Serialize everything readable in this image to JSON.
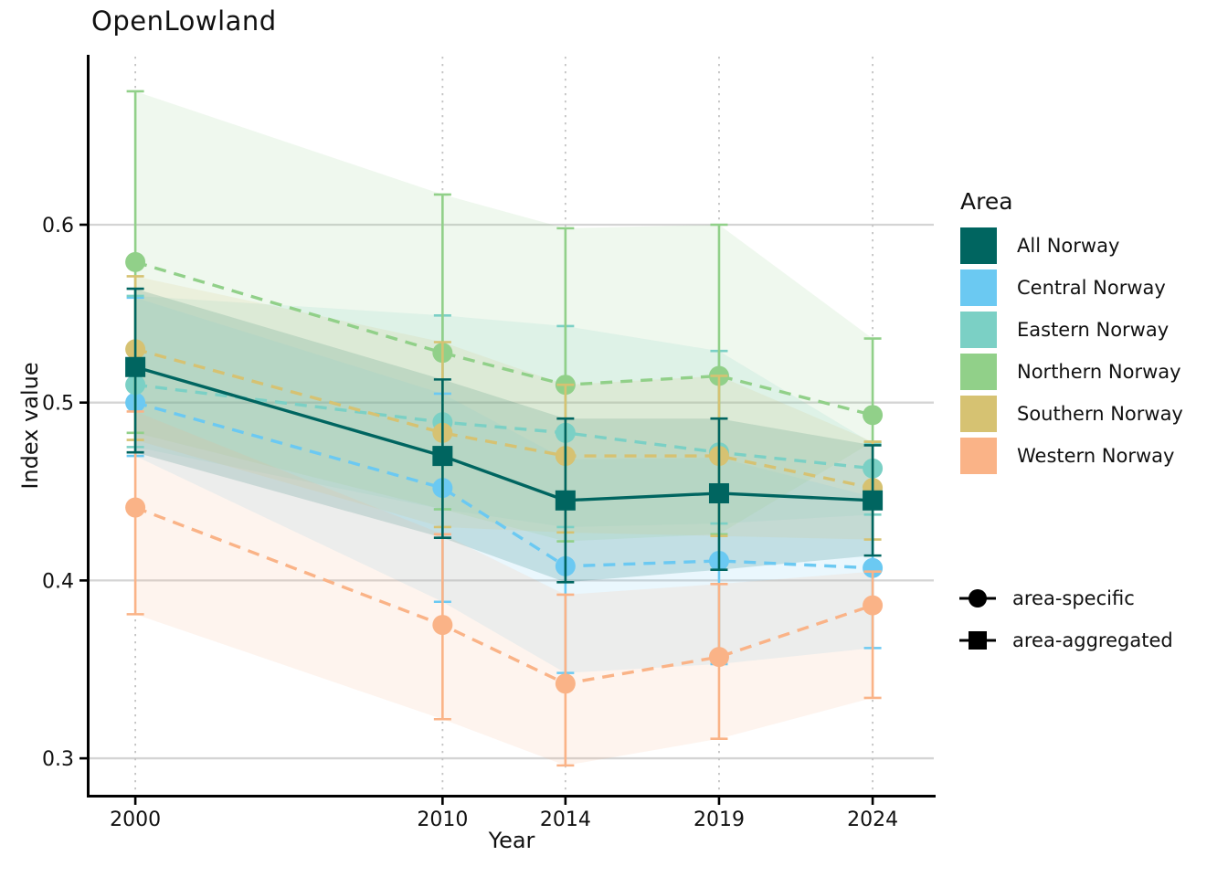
{
  "title": "OpenLowland",
  "chart_data": {
    "type": "line",
    "title": "OpenLowland",
    "xlabel": "Year",
    "ylabel": "Index value",
    "x_ticks": [
      "2000",
      "2010",
      "2014",
      "2019",
      "2024"
    ],
    "x_tick_years": [
      2000,
      2010,
      2014,
      2019,
      2024
    ],
    "y_ticks": [
      0.3,
      0.4,
      0.5,
      0.6
    ],
    "xlim": [
      1998.48,
      2025.99
    ],
    "ylim": [
      0.2795,
      0.6945
    ],
    "grid": {
      "horizontal": "solid",
      "vertical": "dotted",
      "h_color": "#d4d4d4",
      "v_color": "#c4c4c4"
    },
    "legend_title": "Area",
    "legend_position": "right",
    "marker_legend": [
      {
        "label": "area-specific",
        "marker": "circle"
      },
      {
        "label": "area-aggregated",
        "marker": "square"
      }
    ],
    "x": [
      2000,
      2010,
      2014,
      2019,
      2024
    ],
    "series": [
      {
        "name": "All Norway",
        "color": "#006560",
        "marker": "square",
        "line": "solid",
        "kind": "area-aggregated",
        "values": [
          0.52,
          0.47,
          0.445,
          0.449,
          0.445
        ],
        "lower": [
          0.472,
          0.424,
          0.399,
          0.406,
          0.414
        ],
        "upper": [
          0.564,
          0.513,
          0.491,
          0.491,
          0.476
        ]
      },
      {
        "name": "Central Norway",
        "color": "#6bc9f2",
        "marker": "circle",
        "line": "dashed",
        "kind": "area-specific",
        "values": [
          0.5,
          0.452,
          0.408,
          0.411,
          0.407
        ],
        "lower": [
          0.47,
          0.388,
          0.348,
          0.353,
          0.362
        ],
        "upper": [
          0.559,
          0.505,
          0.468,
          0.469,
          0.447
        ]
      },
      {
        "name": "Eastern Norway",
        "color": "#7bd0c5",
        "marker": "circle",
        "line": "dashed",
        "kind": "area-specific",
        "values": [
          0.51,
          0.489,
          0.483,
          0.472,
          0.463
        ],
        "lower": [
          0.475,
          0.44,
          0.43,
          0.432,
          0.437
        ],
        "upper": [
          0.56,
          0.549,
          0.543,
          0.529,
          0.477
        ]
      },
      {
        "name": "Northern Norway",
        "color": "#91d089",
        "marker": "circle",
        "line": "dashed",
        "kind": "area-specific",
        "values": [
          0.579,
          0.528,
          0.51,
          0.515,
          0.493
        ],
        "lower": [
          0.483,
          0.44,
          0.422,
          0.426,
          0.478
        ],
        "upper": [
          0.675,
          0.617,
          0.598,
          0.6,
          0.536
        ]
      },
      {
        "name": "Southern Norway",
        "color": "#d6c272",
        "marker": "circle",
        "line": "dashed",
        "kind": "area-specific",
        "values": [
          0.53,
          0.483,
          0.47,
          0.47,
          0.452
        ],
        "lower": [
          0.479,
          0.43,
          0.427,
          0.425,
          0.423
        ],
        "upper": [
          0.571,
          0.534,
          0.51,
          0.515,
          0.478
        ]
      },
      {
        "name": "Western Norway",
        "color": "#fab387",
        "marker": "circle",
        "line": "dashed",
        "kind": "area-specific",
        "values": [
          0.441,
          0.375,
          0.342,
          0.357,
          0.386
        ],
        "lower": [
          0.381,
          0.322,
          0.296,
          0.311,
          0.334
        ],
        "upper": [
          0.495,
          0.426,
          0.392,
          0.398,
          0.405
        ]
      }
    ],
    "style": {
      "ribbon_opacity": 0.14,
      "ribbon_opacity_aggregated": 0.18,
      "line_width": 3.4,
      "dash_pattern": "13 9",
      "marker_radius": 11,
      "square_size": 22,
      "errorbar_width": 2.6,
      "errorbar_cap_halfwidth": 9.5
    }
  }
}
